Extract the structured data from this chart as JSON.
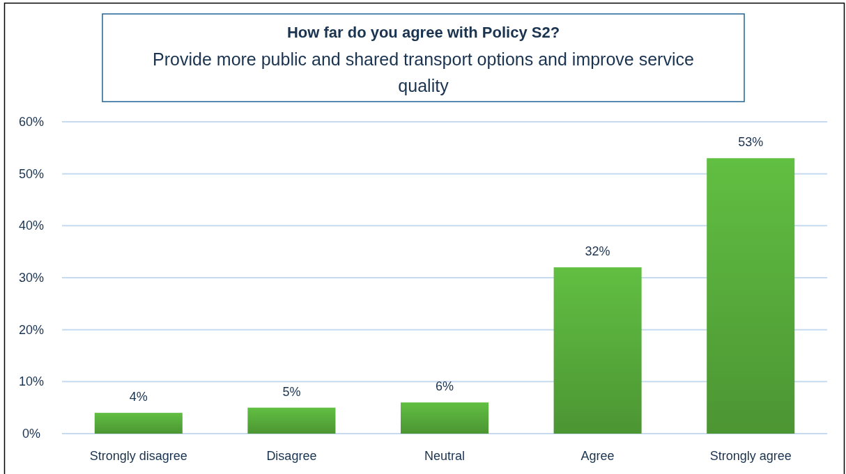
{
  "chart_data": {
    "type": "bar",
    "title": "How far do you agree with Policy S2?",
    "subtitle": "Provide more public and shared transport options and improve service quality",
    "categories": [
      "Strongly disagree",
      "Disagree",
      "Neutral",
      "Agree",
      "Strongly agree"
    ],
    "values": [
      4,
      5,
      6,
      32,
      53
    ],
    "color": "#56a93a",
    "value_labels": [
      "4%",
      "5%",
      "6%",
      "32%",
      "53%"
    ],
    "ylim": [
      0,
      60
    ],
    "yticks": [
      {
        "value": 0,
        "label": "0%"
      },
      {
        "value": 10,
        "label": "10%"
      },
      {
        "value": 20,
        "label": "20%"
      },
      {
        "value": 30,
        "label": "30%"
      },
      {
        "value": 40,
        "label": "40%"
      },
      {
        "value": 50,
        "label": "50%"
      },
      {
        "value": 60,
        "label": "60%"
      }
    ],
    "grid": "y"
  }
}
